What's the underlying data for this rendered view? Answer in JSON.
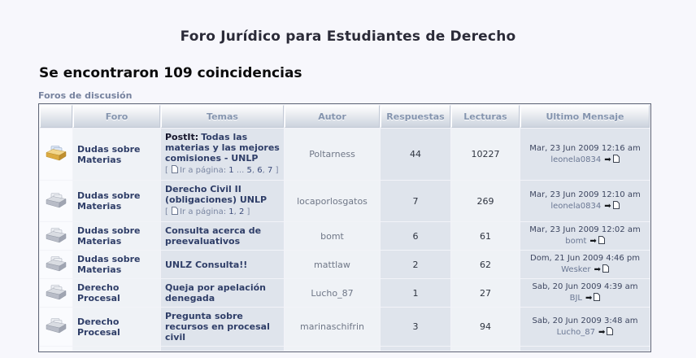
{
  "page": {
    "title": "Foro Jurídico para Estudiantes de Derecho",
    "results_heading": "Se encontraron 109 coincidencias",
    "section_label": "Foros de discusión"
  },
  "colors": {
    "page_background": "#f7f7fc",
    "header_cell_top": "#fefefe",
    "header_cell_bottom": "#ccd3de",
    "header_text": "#8494ae",
    "column_light": "#eff2f6",
    "column_dark": "#dfe4ec",
    "link_navy": "#2f3e68",
    "page_number_link": "#3a4a78",
    "username_link": "#6b7894",
    "hot_folder": "#dcab41"
  },
  "table": {
    "columns": [
      "",
      "Foro",
      "Temas",
      "Autor",
      "Respuestas",
      "Lecturas",
      "Ultimo Mensaje"
    ],
    "rows": [
      {
        "icon": "folder-hot-icon",
        "forum": "Dudas sobre Materias",
        "topic_prefix": "PostIt:",
        "topic": "Todas las materias y las mejores comisiones - UNLP",
        "pagination": {
          "label": "Ir a página:",
          "segments": [
            {
              "text": "1",
              "link": true
            },
            {
              "text": " ... ",
              "link": false
            },
            {
              "text": "5",
              "link": true
            },
            {
              "text": ", ",
              "link": false
            },
            {
              "text": "6",
              "link": true
            },
            {
              "text": ", ",
              "link": false
            },
            {
              "text": "7",
              "link": true
            }
          ]
        },
        "author": "Poltarness",
        "replies": "44",
        "views": "10227",
        "last_post_date": "Mar, 23 Jun 2009 12:16 am",
        "last_post_user": "leonela0834"
      },
      {
        "icon": "folder-icon",
        "forum": "Dudas sobre Materias",
        "topic": "Derecho Civil II (obligaciones) UNLP",
        "pagination": {
          "label": "Ir a página:",
          "segments": [
            {
              "text": "1",
              "link": true
            },
            {
              "text": ", ",
              "link": false
            },
            {
              "text": "2",
              "link": true
            }
          ]
        },
        "author": "locaporlosgatos",
        "replies": "7",
        "views": "269",
        "last_post_date": "Mar, 23 Jun 2009 12:10 am",
        "last_post_user": "leonela0834"
      },
      {
        "icon": "folder-icon",
        "forum": "Dudas sobre Materias",
        "topic": "Consulta acerca de preevaluativos",
        "author": "bomt",
        "replies": "6",
        "views": "61",
        "last_post_date": "Mar, 23 Jun 2009 12:02 am",
        "last_post_user": "bomt"
      },
      {
        "icon": "folder-icon",
        "forum": "Dudas sobre Materias",
        "topic": "UNLZ Consulta!!",
        "author": "mattlaw",
        "replies": "2",
        "views": "62",
        "last_post_date": "Dom, 21 Jun 2009 4:46 pm",
        "last_post_user": "Wesker"
      },
      {
        "icon": "folder-icon",
        "forum": "Derecho Procesal",
        "topic": "Queja por apelación denegada",
        "author": "Lucho_87",
        "replies": "1",
        "views": "27",
        "last_post_date": "Sab, 20 Jun 2009 4:39 am",
        "last_post_user": "BJL"
      },
      {
        "icon": "folder-icon",
        "forum": "Derecho Procesal",
        "topic": "Pregunta sobre recursos en procesal civil",
        "author": "marinaschifrin",
        "replies": "3",
        "views": "94",
        "last_post_date": "Sab, 20 Jun 2009 3:48 am",
        "last_post_user": "Lucho_87"
      }
    ]
  }
}
